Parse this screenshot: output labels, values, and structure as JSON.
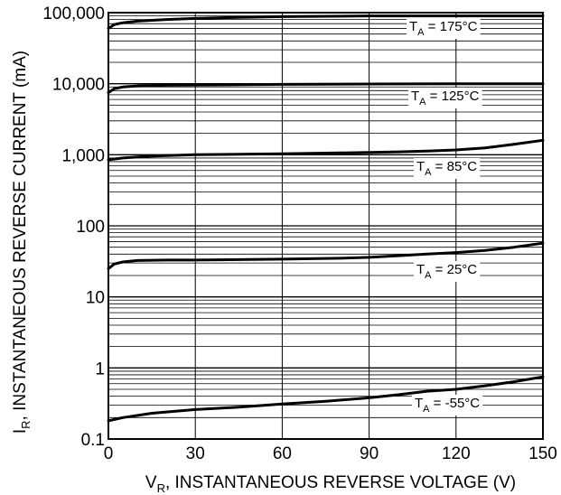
{
  "chart_data": {
    "type": "line",
    "x_axis": {
      "label_main": "V",
      "label_sub": "R",
      "label_rest": ", INSTANTANEOUS REVERSE VOLTAGE (V)",
      "range": [
        0,
        150
      ],
      "ticks": [
        0,
        30,
        60,
        90,
        120,
        150
      ],
      "tick_labels": [
        "0",
        "30",
        "60",
        "90",
        "120",
        "150"
      ]
    },
    "y_axis": {
      "label_main": "I",
      "label_sub": "R",
      "label_rest": ", INSTANTANEOUS REVERSE CURRENT (mA)",
      "scale": "log",
      "range": [
        0.1,
        100000
      ],
      "ticks": [
        0.1,
        1,
        10,
        100,
        1000,
        10000,
        100000
      ],
      "tick_labels": [
        "0.1",
        "1",
        "10",
        "100",
        "1,000",
        "10,000",
        "100,000"
      ]
    },
    "grid": true,
    "series": [
      {
        "name": "T_A = 175°C",
        "label_main": "T",
        "label_sub": "A",
        "label_rest": " = 175°C",
        "x": [
          0,
          2,
          5,
          10,
          20,
          30,
          45,
          60,
          90,
          120,
          150
        ],
        "values": [
          60000,
          68000,
          72000,
          76000,
          80000,
          83000,
          86000,
          88000,
          90000,
          90000,
          90000
        ]
      },
      {
        "name": "T_A = 125°C",
        "label_main": "T",
        "label_sub": "A",
        "label_rest": " = 125°C",
        "x": [
          0,
          2,
          5,
          10,
          20,
          30,
          60,
          90,
          120,
          150
        ],
        "values": [
          7500,
          8500,
          9000,
          9300,
          9500,
          9600,
          9800,
          9900,
          9950,
          10000
        ]
      },
      {
        "name": "T_A = 85°C",
        "label_main": "T",
        "label_sub": "A",
        "label_rest": " = 85°C",
        "x": [
          0,
          5,
          15,
          30,
          60,
          80,
          90,
          100,
          110,
          120,
          130,
          140,
          150
        ],
        "values": [
          850,
          900,
          960,
          1000,
          1030,
          1060,
          1080,
          1100,
          1130,
          1170,
          1250,
          1400,
          1600
        ]
      },
      {
        "name": "T_A = 25°C",
        "label_main": "T",
        "label_sub": "A",
        "label_rest": " = 25°C",
        "x": [
          0,
          2,
          5,
          10,
          20,
          30,
          60,
          80,
          90,
          100,
          110,
          120,
          130,
          140,
          150
        ],
        "values": [
          25,
          29,
          31,
          32.5,
          33,
          33,
          34,
          35,
          36,
          38,
          40,
          42,
          45,
          50,
          57
        ]
      },
      {
        "name": "T_A = -55°C",
        "label_main": "T",
        "label_sub": "A",
        "label_rest": " = -55°C",
        "x": [
          0,
          5,
          15,
          30,
          45,
          60,
          75,
          90,
          100,
          110,
          120,
          130,
          140,
          150
        ],
        "values": [
          0.18,
          0.2,
          0.23,
          0.26,
          0.28,
          0.31,
          0.34,
          0.38,
          0.42,
          0.47,
          0.5,
          0.56,
          0.64,
          0.75
        ]
      }
    ]
  }
}
